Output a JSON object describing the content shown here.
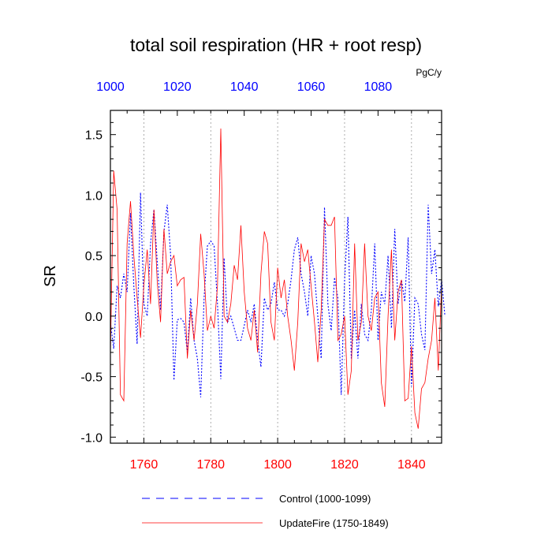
{
  "chart_data": {
    "type": "line",
    "title": "total soil respiration (HR + root resp)",
    "units": "PgC/y",
    "ylabel": "SR",
    "xlabel": "",
    "ylim": [
      -1.05,
      1.7
    ],
    "yticks": [
      -1.0,
      -0.5,
      0.0,
      0.5,
      1.0,
      1.5
    ],
    "ytick_labels": [
      "-1.0",
      "-0.5",
      "0.0",
      "0.5",
      "1.0",
      "1.5"
    ],
    "bottom_axis": {
      "range": [
        1750,
        1849
      ],
      "ticks": [
        1760,
        1780,
        1800,
        1820,
        1840
      ],
      "tick_labels": [
        "1760",
        "1780",
        "1800",
        "1820",
        "1840"
      ],
      "color": "#ff0000"
    },
    "top_axis": {
      "range": [
        1000,
        1099
      ],
      "ticks": [
        1000,
        1020,
        1040,
        1060,
        1080
      ],
      "tick_labels": [
        "1000",
        "1020",
        "1040",
        "1060",
        "1080"
      ],
      "color": "#0000ff"
    },
    "grid": "vertical dotted at bottom ticks",
    "legend_position": "bottom",
    "series": [
      {
        "name": "Control (1000-1099)",
        "axis": "top",
        "color": "#0000ff",
        "style": "dashed",
        "x_start": 1000,
        "values": [
          -0.05,
          -0.27,
          0.25,
          0.15,
          0.35,
          0.2,
          0.85,
          0.25,
          -0.23,
          1.02,
          0.1,
          0.0,
          0.6,
          0.88,
          0.45,
          0.05,
          0.7,
          0.92,
          0.5,
          -0.53,
          -0.03,
          -0.02,
          -0.05,
          -0.3,
          0.15,
          -0.2,
          -0.35,
          -0.67,
          0.15,
          0.58,
          0.62,
          0.58,
          0.1,
          -0.52,
          0.48,
          -0.05,
          0.0,
          -0.1,
          -0.2,
          -0.2,
          -0.08,
          0.05,
          -0.05,
          0.1,
          -0.2,
          -0.42,
          0.15,
          0.05,
          0.1,
          0.28,
          0.05,
          0.05,
          0.0,
          0.1,
          0.3,
          0.55,
          0.65,
          0.35,
          0.2,
          0.0,
          0.5,
          0.35,
          0.0,
          -0.35,
          0.9,
          0.1,
          -0.12,
          0.32,
          0.15,
          -0.65,
          0.3,
          0.82,
          -0.35,
          0.05,
          -0.35,
          0.1,
          -0.15,
          -0.2,
          0.05,
          0.6,
          -0.2,
          0.2,
          0.1,
          0.5,
          -0.1,
          0.72,
          0.1,
          0.3,
          0.12,
          0.65,
          -0.58,
          0.15,
          0.1,
          -0.15,
          -0.28,
          0.92,
          0.35,
          0.55,
          0.08,
          0.3,
          0.0
        ]
      },
      {
        "name": "UpdateFire (1750-1849)",
        "axis": "bottom",
        "color": "#ff0000",
        "style": "solid",
        "x_start": 1750,
        "values": [
          -0.32,
          1.2,
          0.88,
          -0.65,
          -0.7,
          0.6,
          0.95,
          0.5,
          0.15,
          -0.18,
          0.25,
          0.55,
          0.1,
          0.88,
          0.28,
          -0.05,
          0.72,
          0.35,
          0.45,
          0.5,
          0.25,
          0.3,
          0.32,
          -0.35,
          0.05,
          -0.2,
          0.1,
          0.68,
          0.35,
          -0.12,
          0.0,
          -0.1,
          0.25,
          1.55,
          0.0,
          -0.05,
          0.1,
          0.42,
          0.3,
          0.75,
          0.2,
          -0.1,
          -0.2,
          0.05,
          -0.3,
          0.35,
          0.7,
          0.6,
          -0.05,
          -0.2,
          0.4,
          0.15,
          0.3,
          0.0,
          -0.2,
          -0.45,
          -0.05,
          0.6,
          0.45,
          0.55,
          0.25,
          -0.05,
          -0.38,
          0.05,
          0.8,
          0.75,
          0.75,
          0.82,
          -0.2,
          -0.15,
          0.0,
          -0.65,
          -0.45,
          0.6,
          -0.2,
          -0.05,
          0.6,
          0.0,
          -0.12,
          0.15,
          0.2,
          -0.55,
          -0.75,
          0.0,
          0.55,
          -0.2,
          0.2,
          0.3,
          -0.7,
          -0.68,
          -0.25,
          -0.8,
          -0.93,
          -0.6,
          -0.55,
          -0.35,
          -0.2,
          0.15,
          -0.45,
          0.25
        ]
      }
    ]
  }
}
